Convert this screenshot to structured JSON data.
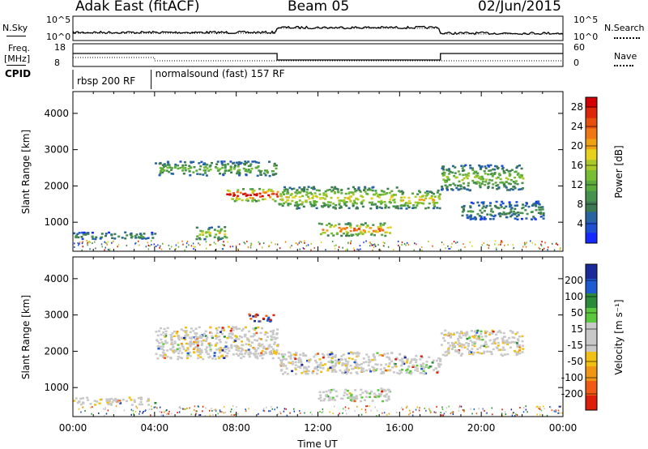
{
  "header": {
    "station": "Adak East (fitACF)",
    "beam": "Beam 05",
    "date": "02/Jun/2015"
  },
  "params": {
    "nsky_label": "N.Sky",
    "nsky_ticks": [
      "10^5",
      "10^0"
    ],
    "nsearch_label": "N.Search",
    "nsearch_ticks": [
      "10^5",
      "10^0"
    ],
    "freq_label_1": "Freq.",
    "freq_label_2": "[MHz]",
    "freq_ticks": [
      "18",
      "8"
    ],
    "nave_label": "Nave",
    "nave_ticks": [
      "60",
      "0"
    ],
    "cpid_label": "CPID",
    "cpid_segments": [
      {
        "label": "rbsp 200 RF",
        "start": "00:00",
        "end": "03:50"
      },
      {
        "label": "normalsound (fast) 157 RF",
        "start": "03:50",
        "end": "24:00"
      }
    ]
  },
  "chart_data": [
    {
      "type": "heatmap",
      "name": "power",
      "ylabel": "Slant Range [km]",
      "xlabel": "",
      "ylim": [
        200,
        4600
      ],
      "yticks": [
        "1000",
        "2000",
        "3000",
        "4000"
      ],
      "xlim_hours": [
        0,
        24
      ],
      "colorbar": {
        "label": "Power [dB]",
        "ticks": [
          "4",
          "8",
          "12",
          "16",
          "20",
          "24",
          "28"
        ],
        "colors": [
          "#1428ff",
          "#1e50d2",
          "#2864a0",
          "#3c7850",
          "#46914b",
          "#5aaa3c",
          "#78be32",
          "#aac828",
          "#e6d21e",
          "#f0a014",
          "#f07814",
          "#e6500f",
          "#dc280a",
          "#d20000"
        ]
      },
      "echo_bands": [
        {
          "t0": 0.0,
          "t1": 4.0,
          "r0": 550,
          "r1": 750,
          "level": 0.3
        },
        {
          "t0": 4.0,
          "t1": 10.0,
          "r0": 2300,
          "r1": 2700,
          "level": 0.4
        },
        {
          "t0": 7.5,
          "t1": 10.0,
          "r0": 1600,
          "r1": 1950,
          "level": 0.9
        },
        {
          "t0": 6.0,
          "t1": 7.5,
          "r0": 550,
          "r1": 900,
          "level": 0.55
        },
        {
          "t0": 10.0,
          "t1": 16.0,
          "r0": 1400,
          "r1": 2000,
          "level": 0.55
        },
        {
          "t0": 12.0,
          "t1": 15.5,
          "r0": 650,
          "r1": 1000,
          "level": 0.75
        },
        {
          "t0": 16.0,
          "t1": 18.0,
          "r0": 1400,
          "r1": 1900,
          "level": 0.6
        },
        {
          "t0": 18.0,
          "t1": 22.0,
          "r0": 1900,
          "r1": 2600,
          "level": 0.45
        },
        {
          "t0": 19.0,
          "t1": 23.0,
          "r0": 1100,
          "r1": 1600,
          "level": 0.3
        }
      ]
    },
    {
      "type": "heatmap",
      "name": "velocity",
      "ylabel": "Slant Range [km]",
      "xlabel": "Time UT",
      "ylim": [
        200,
        4600
      ],
      "yticks": [
        "1000",
        "2000",
        "3000",
        "4000"
      ],
      "xticks": [
        "00:00",
        "04:00",
        "08:00",
        "12:00",
        "16:00",
        "20:00",
        "00:00"
      ],
      "colorbar": {
        "label": "Velocity [m s⁻¹]",
        "ticks": [
          "200",
          "100",
          "50",
          "15",
          "-15",
          "-50",
          "-100",
          "-200"
        ],
        "colors": [
          "#1a2a9a",
          "#1e5ad2",
          "#2a8a3a",
          "#5ac83c",
          "#c8c8c8",
          "#c8c8c8",
          "#f0c014",
          "#f09614",
          "#f05a14",
          "#dc1e0a"
        ]
      },
      "echo_bands": [
        {
          "t0": 0.0,
          "t1": 4.0,
          "r0": 550,
          "r1": 750,
          "level": 0.45
        },
        {
          "t0": 4.0,
          "t1": 10.0,
          "r0": 1800,
          "r1": 2700,
          "level": 0.45
        },
        {
          "t0": 10.0,
          "t1": 16.0,
          "r0": 1400,
          "r1": 2000,
          "level": 0.45
        },
        {
          "t0": 12.0,
          "t1": 15.5,
          "r0": 650,
          "r1": 1000,
          "level": 0.35
        },
        {
          "t0": 16.0,
          "t1": 18.0,
          "r0": 1400,
          "r1": 1900,
          "level": 0.35
        },
        {
          "t0": 18.0,
          "t1": 22.0,
          "r0": 1900,
          "r1": 2600,
          "level": 0.45
        },
        {
          "t0": 8.5,
          "t1": 9.8,
          "r0": 2850,
          "r1": 3050,
          "level": 0.0
        }
      ]
    }
  ]
}
